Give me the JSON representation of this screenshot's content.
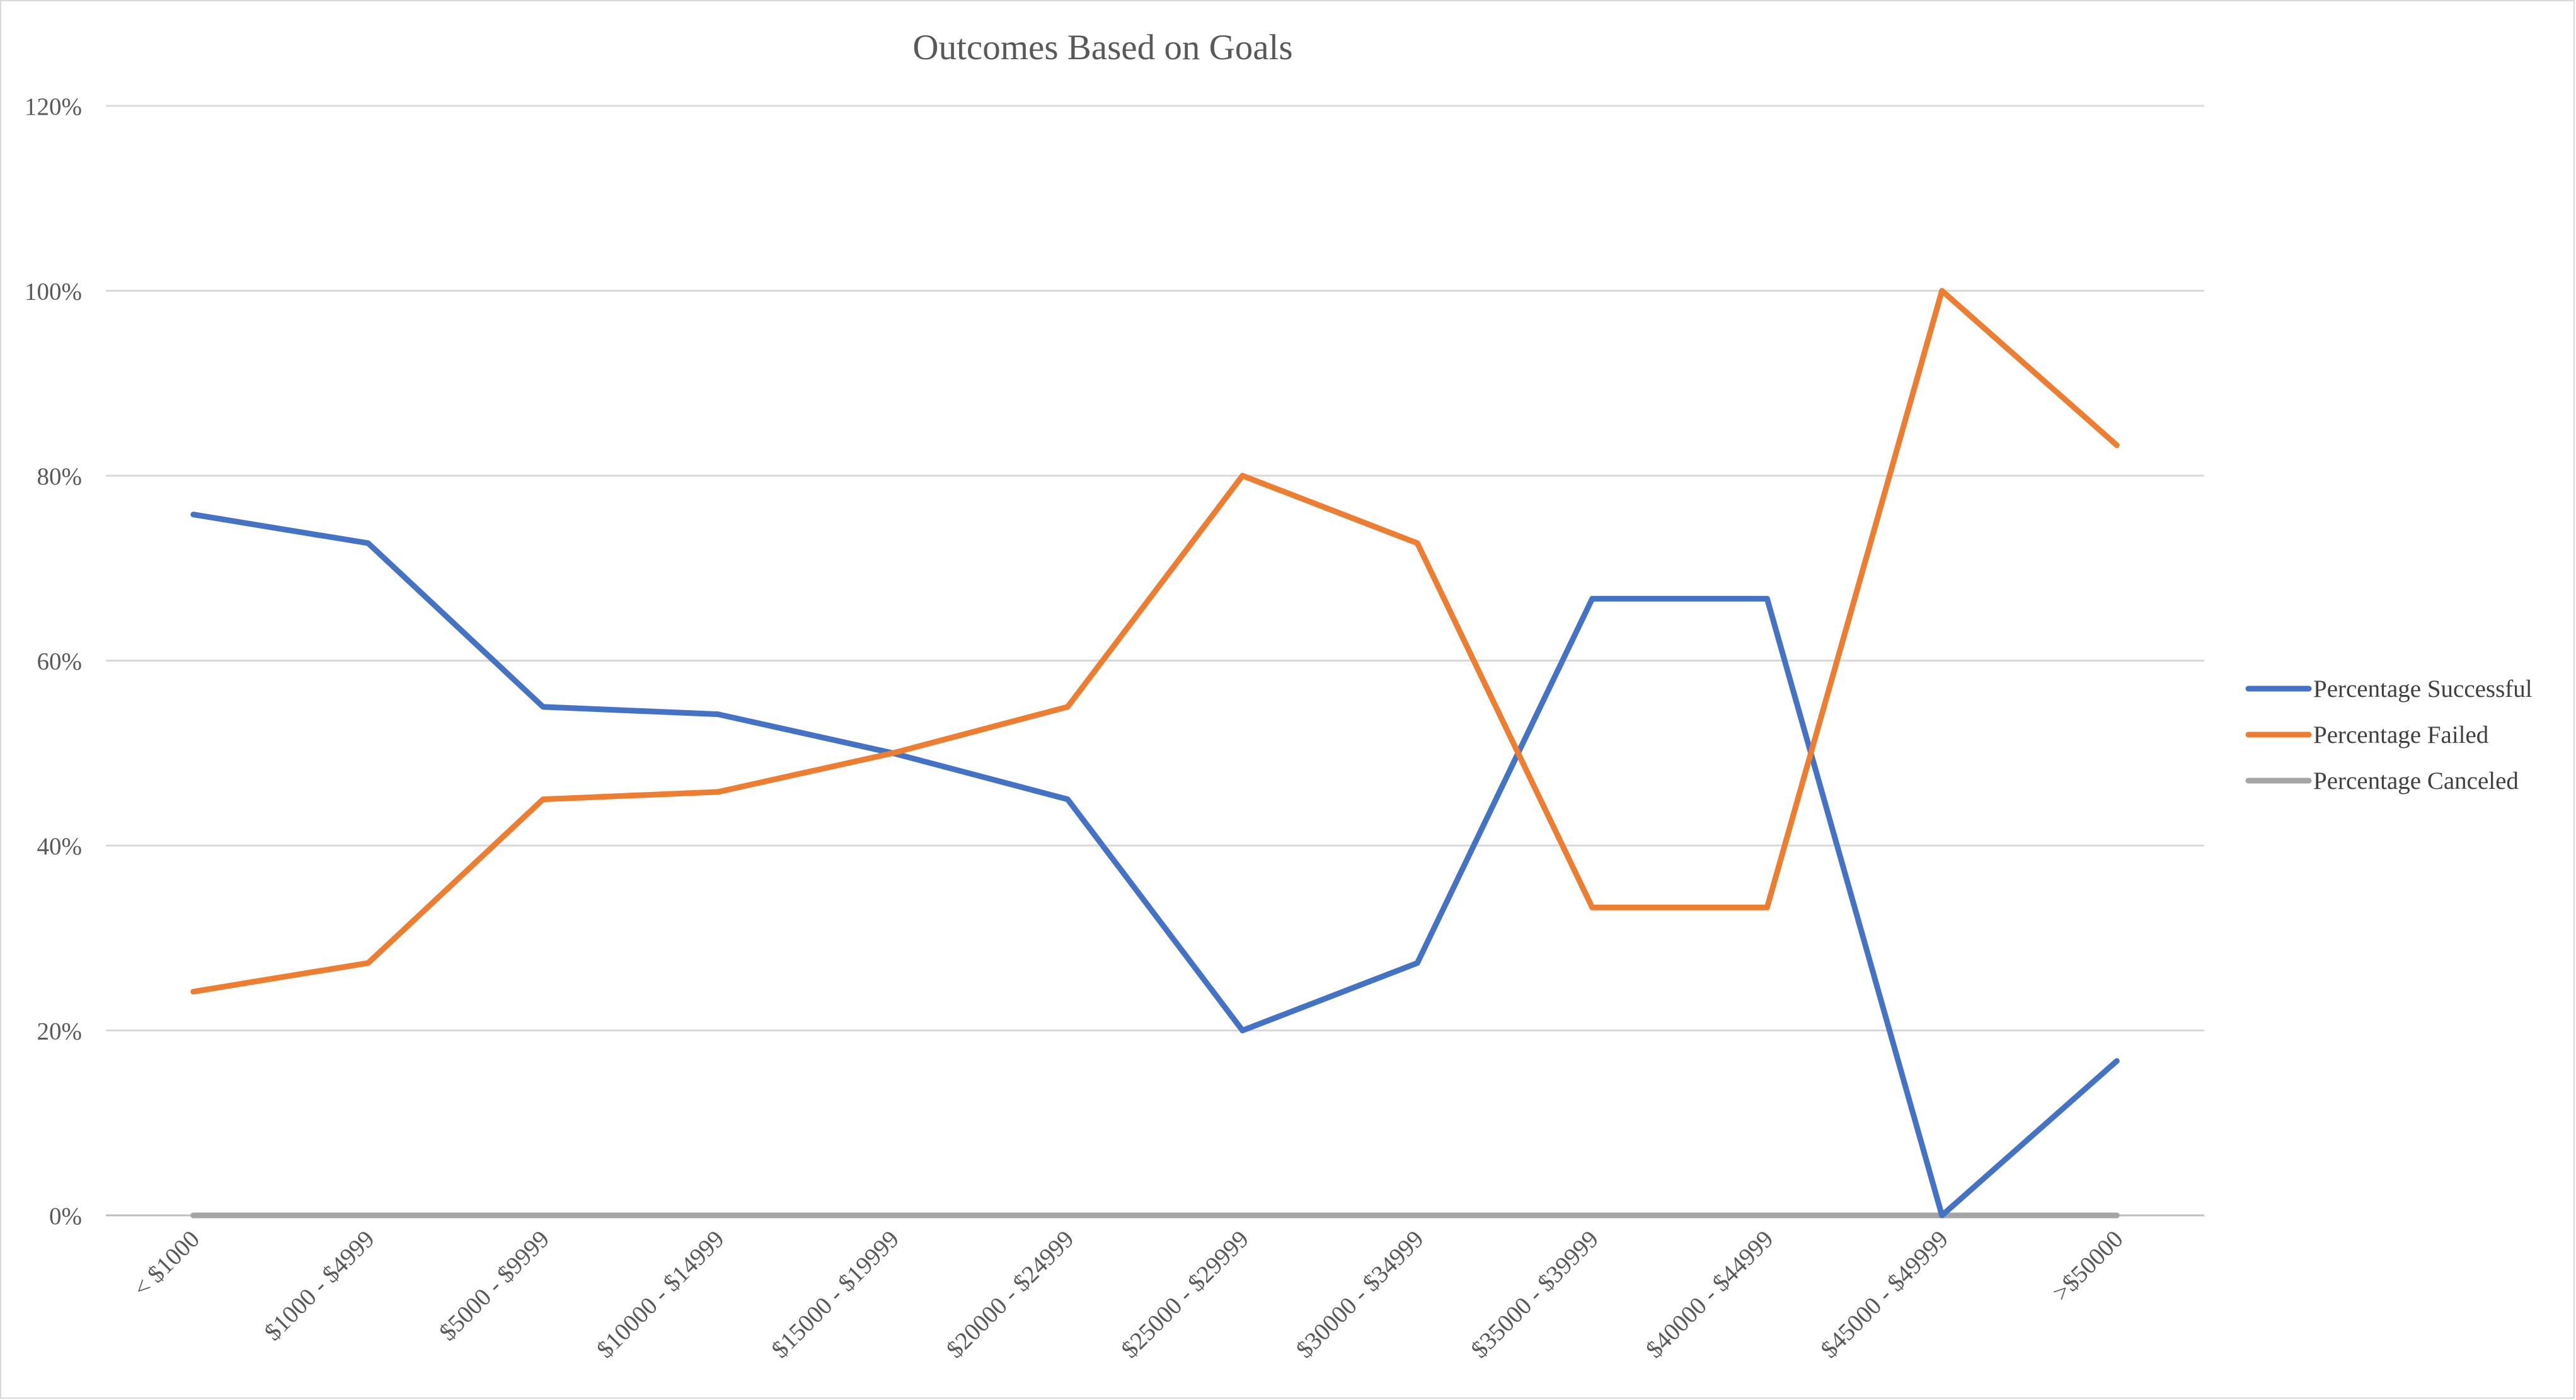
{
  "chart_data": {
    "type": "line",
    "title": "Outcomes Based on Goals",
    "xlabel": "",
    "ylabel": "",
    "categories": [
      "< $1000",
      "$1000 - $4999",
      "$5000 - $9999",
      "$10000 - $14999",
      "$15000 - $19999",
      "$20000 - $24999",
      "$25000 - $29999",
      "$30000 - $34999",
      "$35000 - $39999",
      "$40000 - $44999",
      "$45000 - $49999",
      ">$50000"
    ],
    "ylim": [
      0,
      120
    ],
    "yticks": [
      0,
      20,
      40,
      60,
      80,
      100,
      120
    ],
    "ytick_labels": [
      "0%",
      "20%",
      "40%",
      "60%",
      "80%",
      "100%",
      "120%"
    ],
    "grid": true,
    "legend_position": "right",
    "series": [
      {
        "name": "Percentage Successful",
        "color": "#4472c4",
        "values": [
          75.8,
          72.7,
          55.0,
          54.2,
          50.0,
          45.0,
          20.0,
          27.3,
          66.7,
          66.7,
          0.0,
          16.7
        ]
      },
      {
        "name": "Percentage Failed",
        "color": "#ed7d31",
        "values": [
          24.2,
          27.3,
          45.0,
          45.8,
          50.0,
          55.0,
          80.0,
          72.7,
          33.3,
          33.3,
          100.0,
          83.3
        ]
      },
      {
        "name": "Percentage Canceled",
        "color": "#a5a5a5",
        "values": [
          0,
          0,
          0,
          0,
          0,
          0,
          0,
          0,
          0,
          0,
          0,
          0
        ]
      }
    ]
  }
}
